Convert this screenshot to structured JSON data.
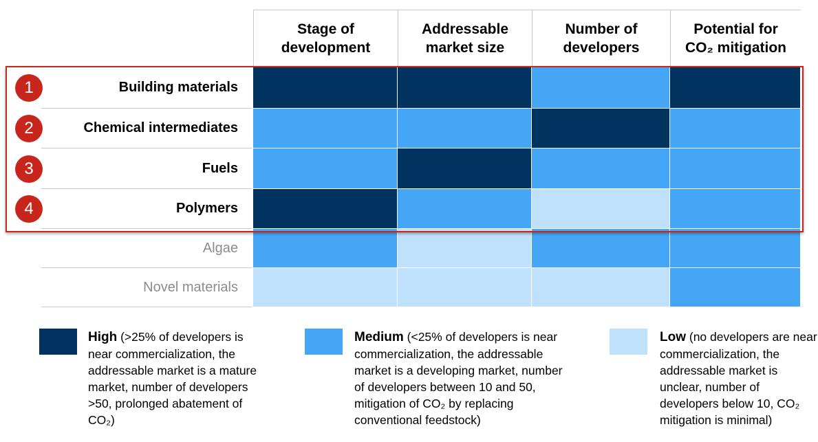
{
  "table": {
    "columns": [
      "Stage of development",
      "Addressable market size",
      "Number of developers",
      "Potential for CO₂ mitigation"
    ],
    "rows": [
      {
        "number": "1",
        "label": "Building materials",
        "highlighted": true,
        "cells": [
          "high",
          "high",
          "medium",
          "high"
        ]
      },
      {
        "number": "2",
        "label": "Chemical intermediates",
        "highlighted": true,
        "cells": [
          "medium",
          "medium",
          "high",
          "medium"
        ]
      },
      {
        "number": "3",
        "label": "Fuels",
        "highlighted": true,
        "cells": [
          "medium",
          "high",
          "medium",
          "medium"
        ]
      },
      {
        "number": "4",
        "label": "Polymers",
        "highlighted": true,
        "cells": [
          "high",
          "medium",
          "low",
          "medium"
        ]
      },
      {
        "label": "Algae",
        "highlighted": false,
        "cells": [
          "medium",
          "low",
          "medium",
          "medium"
        ]
      },
      {
        "label": "Novel materials",
        "highlighted": false,
        "cells": [
          "low",
          "low",
          "low",
          "medium"
        ]
      }
    ]
  },
  "legend": [
    {
      "level": "high",
      "title": "High",
      "text": "(>25% of developers is near commercialization, the addressable market is a mature market,  number of developers >50, prolonged abatement of CO₂)"
    },
    {
      "level": "medium",
      "title": "Medium",
      "text": "(<25% of developers is near commercialization, the addressable market is a developing market,  number of developers between 10 and 50, mitigation of CO₂ by replacing conventional feedstock)"
    },
    {
      "level": "low",
      "title": "Low",
      "text": "(no developers are near commercialization, the addressable market is unclear, number of developers below 10, CO₂ mitigation is minimal)"
    }
  ],
  "colors": {
    "high": "#00335f",
    "medium": "#45a6f6",
    "low": "#c0e1fb"
  }
}
